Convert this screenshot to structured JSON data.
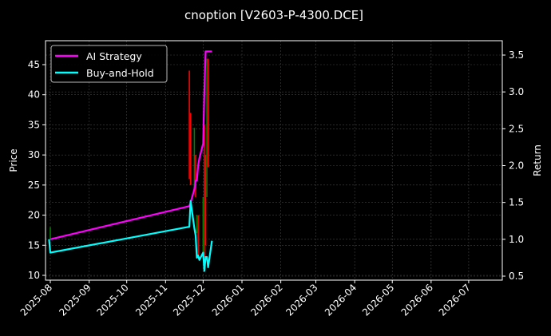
{
  "chart_data": {
    "type": "line",
    "title": "cnoption [V2603-P-4300.DCE]",
    "xlabel": "",
    "ylabel": "Price",
    "ylabel_right": "Return",
    "ylim": [
      9.3,
      48.7
    ],
    "ylim_right": [
      0.45,
      3.67
    ],
    "grid": true,
    "legend_position": "upper left",
    "x_ticks": [
      "2025-08",
      "2025-09",
      "2025-10",
      "2025-11",
      "2025-12",
      "2026-01",
      "2026-02",
      "2026-03",
      "2026-04",
      "2026-05",
      "2026-06",
      "2026-07"
    ],
    "y_ticks": [
      10,
      15,
      20,
      25,
      30,
      35,
      40,
      45
    ],
    "y_ticks_right": [
      0.5,
      1.0,
      1.5,
      2.0,
      2.5,
      3.0,
      3.5
    ],
    "series": [
      {
        "name": "AI Strategy",
        "axis": "right",
        "color": "#ff00ff",
        "x": [
          "2025-08-01",
          "2025-11-20",
          "2025-11-21",
          "2025-11-24",
          "2025-11-25",
          "2025-11-26",
          "2025-11-27",
          "2025-11-28",
          "2025-12-01",
          "2025-12-02",
          "2025-12-03",
          "2025-12-04",
          "2025-12-05",
          "2025-12-08"
        ],
        "values": [
          1.0,
          1.45,
          1.5,
          1.68,
          1.8,
          1.8,
          2.0,
          2.1,
          2.3,
          3.0,
          3.55,
          3.55,
          3.55,
          3.55
        ]
      },
      {
        "name": "Buy-and-Hold",
        "axis": "right",
        "color": "#00ffff",
        "x": [
          "2025-07-31",
          "2025-08-01",
          "2025-11-20",
          "2025-11-21",
          "2025-11-24",
          "2025-11-25",
          "2025-11-26",
          "2025-11-27",
          "2025-11-28",
          "2025-12-01",
          "2025-12-02",
          "2025-12-03",
          "2025-12-04",
          "2025-12-05",
          "2025-12-08"
        ],
        "values": [
          1.0,
          0.82,
          1.17,
          1.52,
          1.15,
          1.05,
          0.75,
          0.78,
          0.72,
          0.82,
          0.57,
          0.76,
          0.76,
          0.62,
          0.98
        ]
      }
    ],
    "candles": {
      "axis": "left",
      "up_color": "#008000",
      "down_color": "#ff0000",
      "items": [
        {
          "date": "2025-08-01",
          "high": 18,
          "low": 16,
          "dir": "up"
        },
        {
          "date": "2025-11-20",
          "high": 44,
          "low": 26,
          "dir": "down"
        },
        {
          "date": "2025-11-21",
          "high": 37,
          "low": 25,
          "dir": "down"
        },
        {
          "date": "2025-11-24",
          "high": 34.5,
          "low": 24,
          "dir": "up"
        },
        {
          "date": "2025-11-25",
          "high": 30,
          "low": 23,
          "dir": "down"
        },
        {
          "date": "2025-11-26",
          "high": 20,
          "low": 17,
          "dir": "up"
        },
        {
          "date": "2025-11-27",
          "high": 20,
          "low": 13,
          "dir": "down"
        },
        {
          "date": "2025-12-01",
          "high": 23,
          "low": 13,
          "dir": "up"
        },
        {
          "date": "2025-12-02",
          "high": 35,
          "low": 13,
          "dir": "down"
        },
        {
          "date": "2025-12-03",
          "high": 30,
          "low": 15,
          "dir": "down"
        },
        {
          "date": "2025-12-04",
          "high": 46,
          "low": 23,
          "dir": "up"
        },
        {
          "date": "2025-12-05",
          "high": 46,
          "low": 28,
          "dir": "down"
        }
      ]
    }
  },
  "legend": {
    "items": [
      {
        "label": "AI Strategy",
        "color": "#ff00ff"
      },
      {
        "label": "Buy-and-Hold",
        "color": "#00ffff"
      }
    ]
  }
}
